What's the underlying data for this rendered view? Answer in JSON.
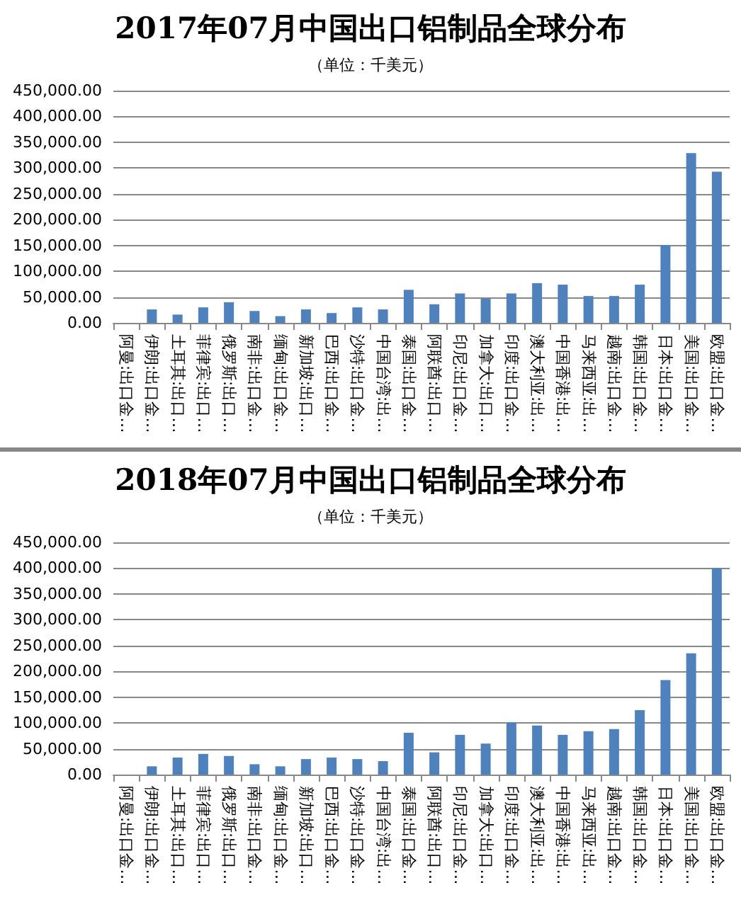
{
  "chart_data": [
    {
      "type": "bar",
      "title": "2017年07月中国出口铝制品全球分布",
      "subtitle": "（单位：千美元）",
      "categories": [
        "阿曼:出口金…",
        "伊朗:出口金…",
        "土耳其:出口…",
        "菲律宾:出口…",
        "俄罗斯:出口…",
        "南非:出口金…",
        "缅甸:出口金…",
        "新加坡:出口…",
        "巴西:出口金…",
        "沙特:出口金…",
        "中国台湾:出…",
        "泰国:出口金…",
        "阿联酋:出口…",
        "印尼:出口金…",
        "加拿大:出口…",
        "印度:出口金…",
        "澳大利亚:出…",
        "中国香港:出…",
        "马来西亚:出…",
        "越南:出口金…",
        "韩国:出口金…",
        "日本:出口金…",
        "美国:出口金…",
        "欧盟:出口金…"
      ],
      "values": [
        0,
        26000,
        16000,
        30000,
        40000,
        23000,
        13000,
        26000,
        19000,
        30000,
        26000,
        64000,
        36000,
        57000,
        47000,
        57000,
        77000,
        74000,
        52000,
        52000,
        74000,
        151000,
        329000,
        293000
      ],
      "color": "#4f81bd",
      "ylim": [
        0,
        450000
      ],
      "yticks": [
        {
          "value": 0,
          "label": "0.00"
        },
        {
          "value": 50000,
          "label": "50,000.00"
        },
        {
          "value": 100000,
          "label": "100,000.00"
        },
        {
          "value": 150000,
          "label": "150,000.00"
        },
        {
          "value": 200000,
          "label": "200,000.00"
        },
        {
          "value": 250000,
          "label": "250,000.00"
        },
        {
          "value": 300000,
          "label": "300,000.00"
        },
        {
          "value": 350000,
          "label": "350,000.00"
        },
        {
          "value": 400000,
          "label": "400,000.00"
        },
        {
          "value": 450000,
          "label": "450,000.00"
        }
      ],
      "grid": "y"
    },
    {
      "type": "bar",
      "title": "2018年07月中国出口铝制品全球分布",
      "subtitle": "（单位：千美元）",
      "categories": [
        "阿曼:出口金…",
        "伊朗:出口金…",
        "土耳其:出口…",
        "菲律宾:出口…",
        "俄罗斯:出口…",
        "南非:出口金…",
        "缅甸:出口金…",
        "新加坡:出口…",
        "巴西:出口金…",
        "沙特:出口金…",
        "中国台湾:出…",
        "泰国:出口金…",
        "阿联酋:出口…",
        "印尼:出口金…",
        "加拿大:出口…",
        "印度:出口金…",
        "澳大利亚:出…",
        "中国香港:出…",
        "马来西亚:出…",
        "越南:出口金…",
        "韩国:出口金…",
        "日本:出口金…",
        "美国:出口金…",
        "欧盟:出口金…"
      ],
      "values": [
        0,
        16000,
        33000,
        40000,
        36000,
        20000,
        16000,
        30000,
        33000,
        30000,
        26000,
        81000,
        43000,
        77000,
        60000,
        101000,
        95000,
        77000,
        84000,
        88000,
        125000,
        183000,
        235000,
        400000
      ],
      "color": "#4f81bd",
      "ylim": [
        0,
        450000
      ],
      "yticks": [
        {
          "value": 0,
          "label": "0.00"
        },
        {
          "value": 50000,
          "label": "50,000.00"
        },
        {
          "value": 100000,
          "label": "100,000.00"
        },
        {
          "value": 150000,
          "label": "150,000.00"
        },
        {
          "value": 200000,
          "label": "200,000.00"
        },
        {
          "value": 250000,
          "label": "250,000.00"
        },
        {
          "value": 300000,
          "label": "300,000.00"
        },
        {
          "value": 350000,
          "label": "350,000.00"
        },
        {
          "value": 400000,
          "label": "400,000.00"
        },
        {
          "value": 450000,
          "label": "450,000.00"
        }
      ],
      "grid": "y"
    }
  ]
}
